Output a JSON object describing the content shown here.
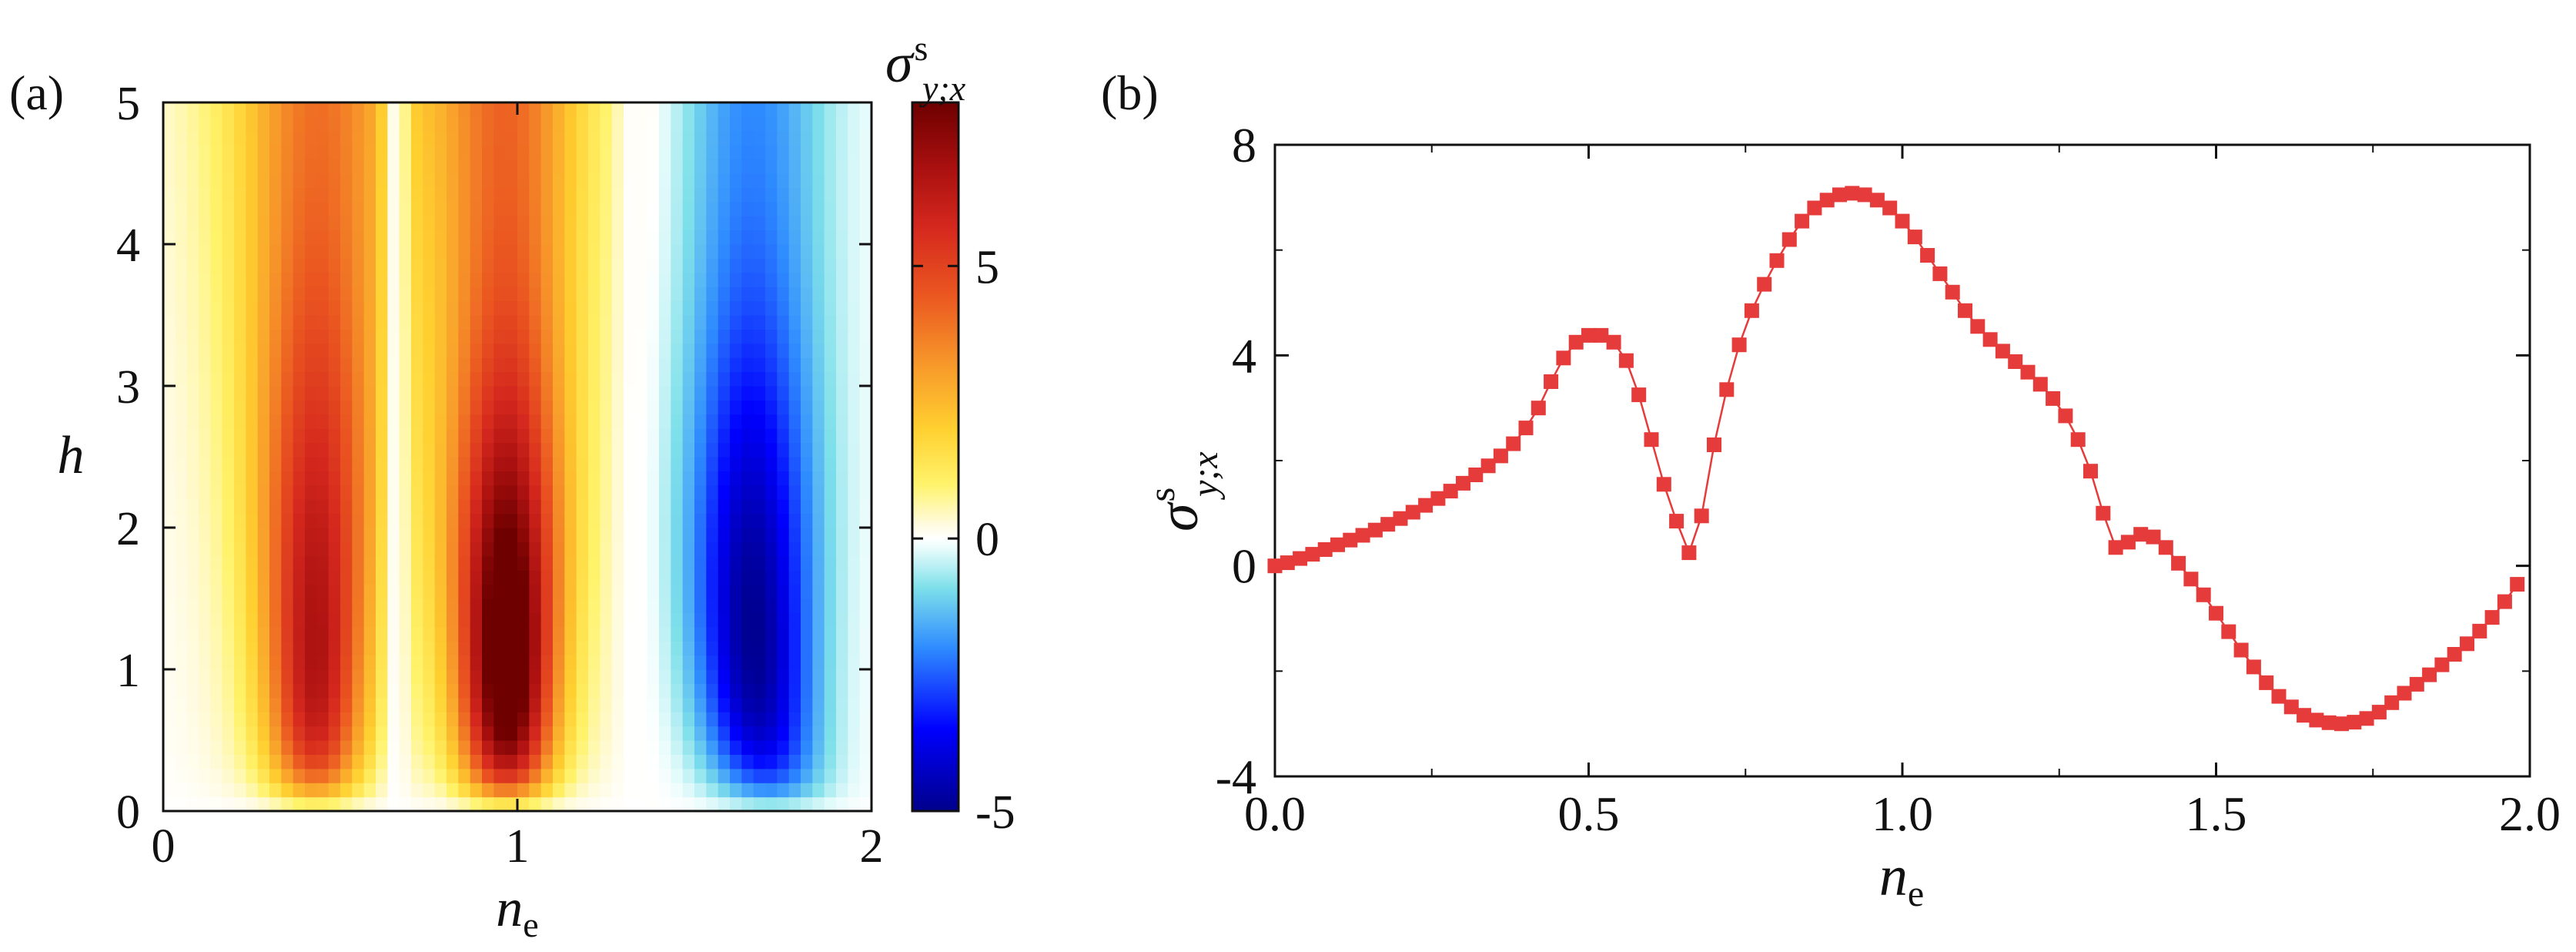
{
  "chart_data": [
    {
      "type": "heatmap",
      "panel_label": "(a)",
      "x": {
        "label_main": "n",
        "label_sub": "e",
        "range": [
          0,
          2
        ],
        "ticks": [
          {
            "value": 0,
            "label": "0"
          },
          {
            "value": 1,
            "label": "1"
          },
          {
            "value": 2,
            "label": "2"
          }
        ]
      },
      "y": {
        "label": "h",
        "range": [
          0,
          5
        ],
        "ticks": [
          {
            "value": 0,
            "label": "0"
          },
          {
            "value": 1,
            "label": "1"
          },
          {
            "value": 2,
            "label": "2"
          },
          {
            "value": 3,
            "label": "3"
          },
          {
            "value": 4,
            "label": "4"
          },
          {
            "value": 5,
            "label": "5"
          }
        ]
      },
      "colorbar": {
        "title_main": "σ",
        "title_sup": "s",
        "title_sub": "y;x",
        "range": [
          -5,
          8
        ],
        "ticks": [
          {
            "value": -5,
            "label": "-5"
          },
          {
            "value": 0,
            "label": "0"
          },
          {
            "value": 5,
            "label": "5"
          }
        ],
        "colormap": [
          [
            -5,
            "#00008b"
          ],
          [
            -3.5,
            "#0000ff"
          ],
          [
            -2,
            "#2f8cff"
          ],
          [
            -0.9,
            "#7ee0ea"
          ],
          [
            -0.2,
            "#e6fbfb"
          ],
          [
            0,
            "#ffffff"
          ],
          [
            0.25,
            "#fffbe0"
          ],
          [
            1,
            "#fff36b"
          ],
          [
            2,
            "#ffd030"
          ],
          [
            3.2,
            "#f7982a"
          ],
          [
            4.5,
            "#ea5520"
          ],
          [
            5.7,
            "#d5281e"
          ],
          [
            6.8,
            "#a9100f"
          ],
          [
            8,
            "#6e0000"
          ]
        ]
      },
      "grid_resolution": {
        "nx": 60,
        "ny": 50
      },
      "note": "field values sampled on the grid are computed from the panel (b) curve modulated by h"
    },
    {
      "type": "line",
      "panel_label": "(b)",
      "x": {
        "label_main": "n",
        "label_sub": "e",
        "range": [
          0,
          2
        ],
        "ticks": [
          {
            "value": 0,
            "label": "0.0"
          },
          {
            "value": 0.5,
            "label": "0.5"
          },
          {
            "value": 1,
            "label": "1.0"
          },
          {
            "value": 1.5,
            "label": "1.5"
          },
          {
            "value": 2,
            "label": "2.0"
          }
        ]
      },
      "y": {
        "label_main": "σ",
        "label_sup": "s",
        "label_sub": "y;x",
        "range": [
          -4,
          8
        ],
        "ticks": [
          {
            "value": -4,
            "label": "-4"
          },
          {
            "value": 0,
            "label": "0"
          },
          {
            "value": 4,
            "label": "4"
          },
          {
            "value": 8,
            "label": "8"
          }
        ]
      },
      "series": [
        {
          "name": "sigma_s_yx",
          "color": "#e63b3b",
          "marker": "square",
          "points": [
            [
              0.0,
              0.0
            ],
            [
              0.02,
              0.06
            ],
            [
              0.04,
              0.14
            ],
            [
              0.06,
              0.22
            ],
            [
              0.08,
              0.31
            ],
            [
              0.1,
              0.4
            ],
            [
              0.12,
              0.49
            ],
            [
              0.14,
              0.58
            ],
            [
              0.16,
              0.68
            ],
            [
              0.18,
              0.79
            ],
            [
              0.2,
              0.9
            ],
            [
              0.22,
              1.02
            ],
            [
              0.24,
              1.15
            ],
            [
              0.26,
              1.28
            ],
            [
              0.28,
              1.42
            ],
            [
              0.3,
              1.57
            ],
            [
              0.32,
              1.73
            ],
            [
              0.34,
              1.9
            ],
            [
              0.36,
              2.09
            ],
            [
              0.38,
              2.32
            ],
            [
              0.4,
              2.62
            ],
            [
              0.42,
              3.0
            ],
            [
              0.44,
              3.5
            ],
            [
              0.46,
              3.95
            ],
            [
              0.48,
              4.25
            ],
            [
              0.5,
              4.38
            ],
            [
              0.52,
              4.38
            ],
            [
              0.54,
              4.25
            ],
            [
              0.56,
              3.9
            ],
            [
              0.58,
              3.25
            ],
            [
              0.6,
              2.4
            ],
            [
              0.62,
              1.55
            ],
            [
              0.64,
              0.85
            ],
            [
              0.66,
              0.25
            ],
            [
              0.68,
              0.95
            ],
            [
              0.7,
              2.3
            ],
            [
              0.72,
              3.35
            ],
            [
              0.74,
              4.2
            ],
            [
              0.76,
              4.85
            ],
            [
              0.78,
              5.35
            ],
            [
              0.8,
              5.8
            ],
            [
              0.82,
              6.2
            ],
            [
              0.84,
              6.55
            ],
            [
              0.86,
              6.8
            ],
            [
              0.88,
              6.95
            ],
            [
              0.9,
              7.05
            ],
            [
              0.92,
              7.08
            ],
            [
              0.94,
              7.05
            ],
            [
              0.96,
              6.95
            ],
            [
              0.98,
              6.8
            ],
            [
              1.0,
              6.55
            ],
            [
              1.02,
              6.25
            ],
            [
              1.04,
              5.9
            ],
            [
              1.06,
              5.55
            ],
            [
              1.08,
              5.2
            ],
            [
              1.1,
              4.85
            ],
            [
              1.12,
              4.55
            ],
            [
              1.14,
              4.3
            ],
            [
              1.16,
              4.08
            ],
            [
              1.18,
              3.88
            ],
            [
              1.2,
              3.68
            ],
            [
              1.22,
              3.45
            ],
            [
              1.24,
              3.18
            ],
            [
              1.26,
              2.85
            ],
            [
              1.28,
              2.4
            ],
            [
              1.3,
              1.8
            ],
            [
              1.32,
              1.0
            ],
            [
              1.34,
              0.35
            ],
            [
              1.36,
              0.45
            ],
            [
              1.38,
              0.6
            ],
            [
              1.4,
              0.55
            ],
            [
              1.42,
              0.35
            ],
            [
              1.44,
              0.05
            ],
            [
              1.46,
              -0.25
            ],
            [
              1.48,
              -0.55
            ],
            [
              1.5,
              -0.9
            ],
            [
              1.52,
              -1.25
            ],
            [
              1.54,
              -1.6
            ],
            [
              1.56,
              -1.92
            ],
            [
              1.58,
              -2.22
            ],
            [
              1.6,
              -2.48
            ],
            [
              1.62,
              -2.68
            ],
            [
              1.64,
              -2.84
            ],
            [
              1.66,
              -2.93
            ],
            [
              1.68,
              -2.98
            ],
            [
              1.7,
              -3.0
            ],
            [
              1.72,
              -2.97
            ],
            [
              1.74,
              -2.9
            ],
            [
              1.76,
              -2.78
            ],
            [
              1.78,
              -2.6
            ],
            [
              1.8,
              -2.42
            ],
            [
              1.82,
              -2.25
            ],
            [
              1.84,
              -2.07
            ],
            [
              1.86,
              -1.88
            ],
            [
              1.88,
              -1.68
            ],
            [
              1.9,
              -1.48
            ],
            [
              1.92,
              -1.24
            ],
            [
              1.94,
              -0.98
            ],
            [
              1.96,
              -0.68
            ],
            [
              1.98,
              -0.35
            ]
          ]
        }
      ]
    }
  ]
}
